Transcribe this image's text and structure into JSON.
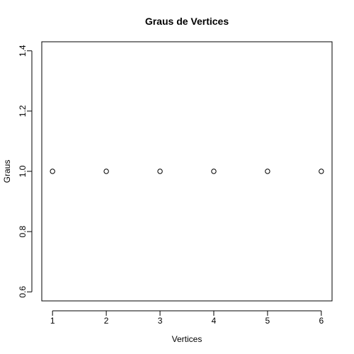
{
  "chart_data": {
    "type": "scatter",
    "title": "Graus de Vertices",
    "xlabel": "Vertices",
    "ylabel": "Graus",
    "x": [
      1,
      2,
      3,
      4,
      5,
      6
    ],
    "y": [
      1.0,
      1.0,
      1.0,
      1.0,
      1.0,
      1.0
    ],
    "xlim": [
      0.8,
      6.2
    ],
    "ylim": [
      0.57,
      1.43
    ],
    "xticks": [
      1,
      2,
      3,
      4,
      5,
      6
    ],
    "yticks": [
      0.6,
      0.8,
      1.0,
      1.2,
      1.4
    ],
    "xtick_labels": [
      "1",
      "2",
      "3",
      "4",
      "5",
      "6"
    ],
    "ytick_labels": [
      "0.6",
      "0.8",
      "1.0",
      "1.2",
      "1.4"
    ],
    "grid": false,
    "marker": "open-circle",
    "colors": {
      "points": "#000000",
      "axes": "#000000",
      "background": "#ffffff"
    }
  }
}
